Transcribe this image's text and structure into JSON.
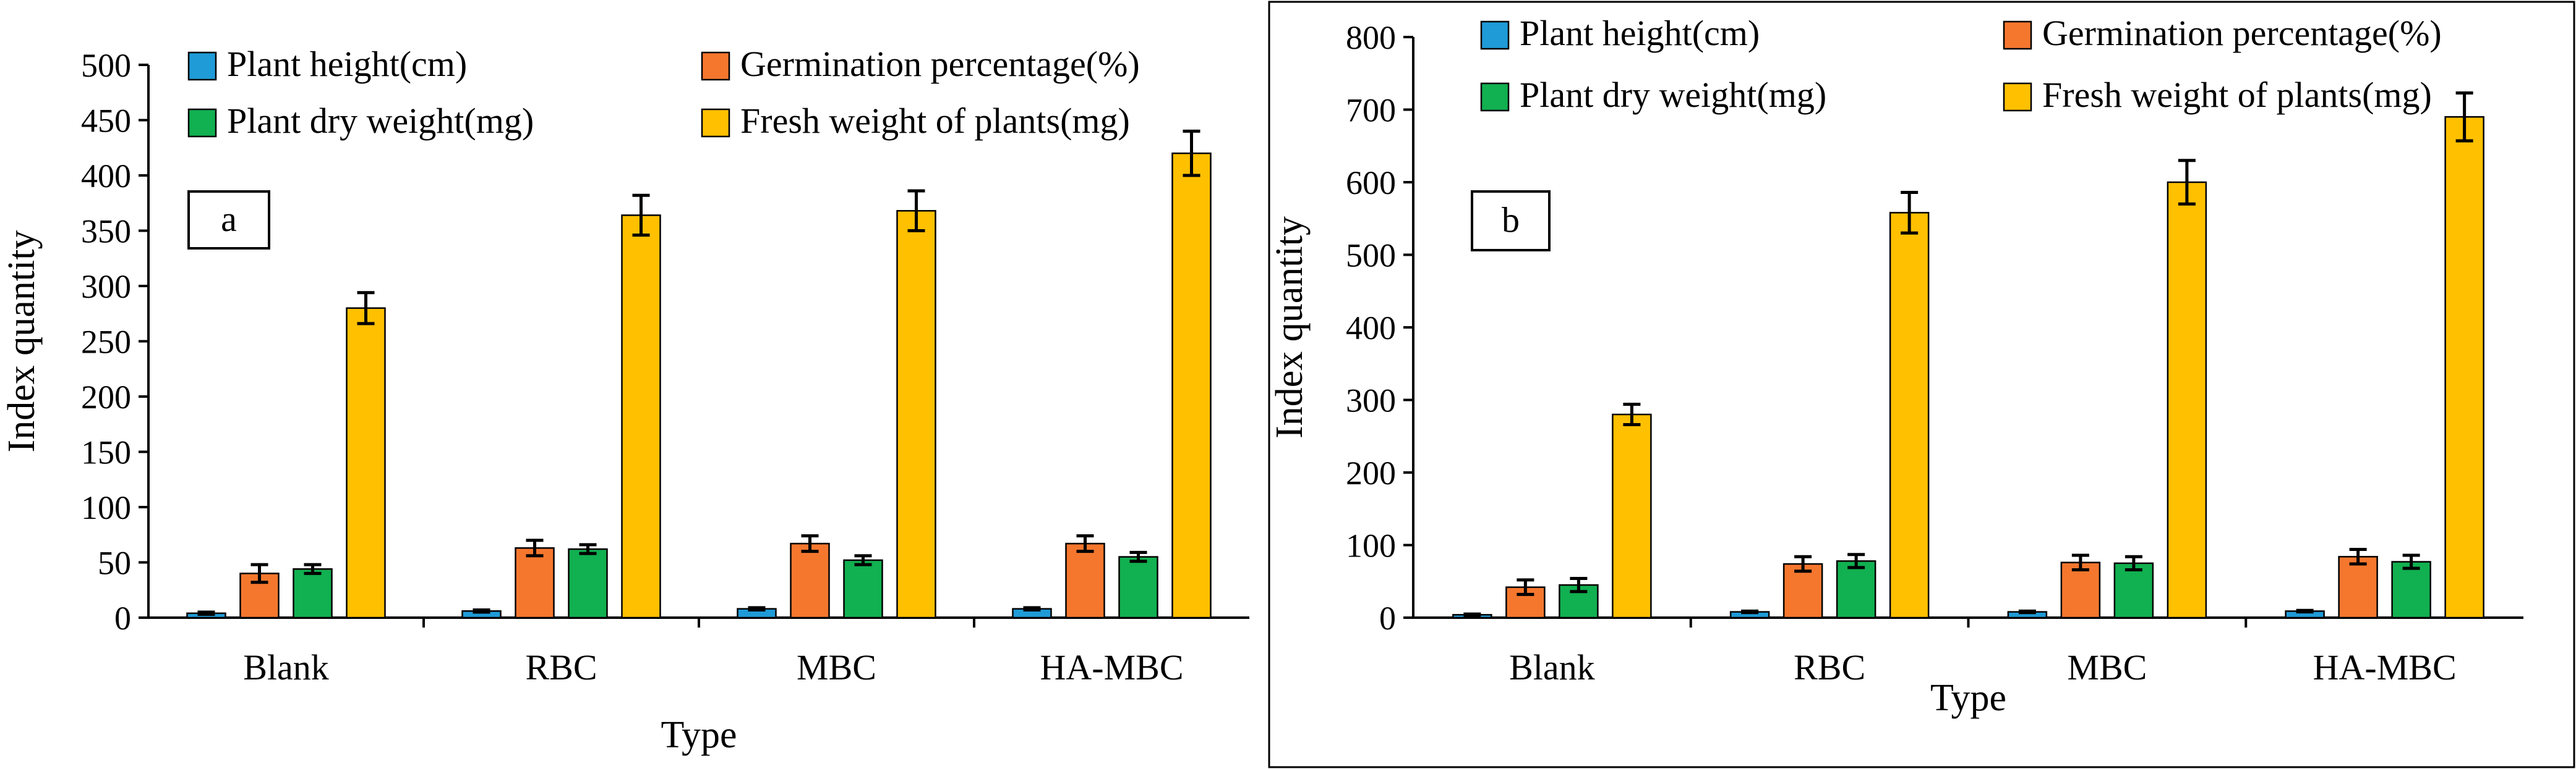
{
  "chart_data": [
    {
      "panel_label": "a",
      "type": "bar",
      "xlabel": "Type",
      "ylabel": "Index quantity",
      "ylim": [
        0,
        500
      ],
      "yticks": [
        0,
        50,
        100,
        150,
        200,
        250,
        300,
        350,
        400,
        450,
        500
      ],
      "grid": false,
      "legend_position": "top",
      "categories": [
        "Blank",
        "RBC",
        "MBC",
        "HA-MBC"
      ],
      "series": [
        {
          "name": "Plant height(cm)",
          "color": "#1f9bd7",
          "values": [
            4,
            6,
            8,
            8
          ],
          "errors": [
            1,
            1,
            1,
            1
          ]
        },
        {
          "name": "Germination percentage(%)",
          "color": "#f5772e",
          "values": [
            40,
            63,
            67,
            67
          ],
          "errors": [
            8,
            7,
            7,
            7
          ]
        },
        {
          "name": "Plant dry weight(mg)",
          "color": "#11b050",
          "values": [
            44,
            62,
            52,
            55
          ],
          "errors": [
            4,
            4,
            4,
            4
          ]
        },
        {
          "name": "Fresh weight of plants(mg)",
          "color": "#ffc000",
          "values": [
            280,
            364,
            368,
            420
          ],
          "errors": [
            14,
            18,
            18,
            20
          ]
        }
      ]
    },
    {
      "panel_label": "b",
      "type": "bar",
      "xlabel": "Type",
      "ylabel": "Index quantity",
      "ylim": [
        0,
        800
      ],
      "yticks": [
        0,
        100,
        200,
        300,
        400,
        500,
        600,
        700,
        800
      ],
      "grid": false,
      "legend_position": "top",
      "categories": [
        "Blank",
        "RBC",
        "MBC",
        "HA-MBC"
      ],
      "series": [
        {
          "name": "Plant height(cm)",
          "color": "#1f9bd7",
          "values": [
            4,
            8,
            8,
            9
          ],
          "errors": [
            1,
            1,
            1,
            1
          ]
        },
        {
          "name": "Germination percentage(%)",
          "color": "#f5772e",
          "values": [
            42,
            74,
            76,
            84
          ],
          "errors": [
            10,
            10,
            10,
            10
          ]
        },
        {
          "name": "Plant dry weight(mg)",
          "color": "#11b050",
          "values": [
            45,
            78,
            75,
            77
          ],
          "errors": [
            9,
            9,
            9,
            9
          ]
        },
        {
          "name": "Fresh weight of plants(mg)",
          "color": "#ffc000",
          "values": [
            280,
            558,
            600,
            690
          ],
          "errors": [
            14,
            28,
            30,
            33
          ]
        }
      ]
    }
  ]
}
